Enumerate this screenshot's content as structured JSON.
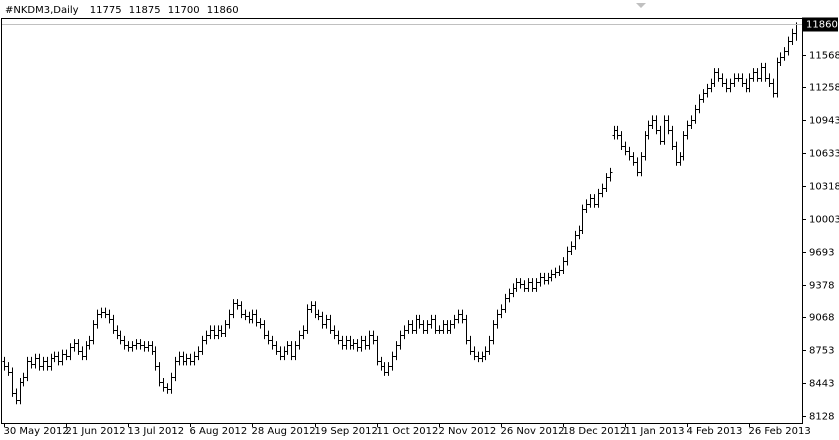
{
  "chart_data": {
    "type": "ohlc",
    "title": "#NKDM3,Daily",
    "color": "#000000",
    "categories": [
      "30 May 2012",
      null,
      null,
      null,
      null,
      null,
      null,
      null,
      null,
      null,
      null,
      null,
      null,
      null,
      null,
      null,
      "21 Jun 2012",
      null,
      null,
      null,
      null,
      null,
      null,
      null,
      null,
      null,
      null,
      null,
      null,
      null,
      null,
      null,
      "13 Jul 2012",
      null,
      null,
      null,
      null,
      null,
      null,
      null,
      null,
      null,
      null,
      null,
      null,
      null,
      null,
      null,
      "6 Aug 2012",
      null,
      null,
      null,
      null,
      null,
      null,
      null,
      null,
      null,
      null,
      null,
      null,
      null,
      null,
      null,
      "28 Aug 2012",
      null,
      null,
      null,
      null,
      null,
      null,
      null,
      null,
      null,
      null,
      null,
      null,
      null,
      null,
      null,
      "19 Sep 2012",
      null,
      null,
      null,
      null,
      null,
      null,
      null,
      null,
      null,
      null,
      null,
      null,
      null,
      null,
      null,
      "11 Oct 2012",
      null,
      null,
      null,
      null,
      null,
      null,
      null,
      null,
      null,
      null,
      null,
      null,
      null,
      null,
      null,
      "2 Nov 2012",
      null,
      null,
      null,
      null,
      null,
      null,
      null,
      null,
      null,
      null,
      null,
      null,
      null,
      null,
      null,
      "26 Nov 2012",
      null,
      null,
      null,
      null,
      null,
      null,
      null,
      null,
      null,
      null,
      null,
      null,
      null,
      null,
      null,
      "18 Dec 2012",
      null,
      null,
      null,
      null,
      null,
      null,
      null,
      null,
      null,
      null,
      null,
      null,
      null,
      null,
      null,
      "11 Jan 2013",
      null,
      null,
      null,
      null,
      null,
      null,
      null,
      null,
      null,
      null,
      null,
      null,
      null,
      null,
      null,
      "4 Feb 2013",
      null,
      null,
      null,
      null,
      null,
      null,
      null,
      null,
      null,
      null,
      null,
      null,
      null,
      null,
      null,
      "26 Feb 2013",
      null,
      null,
      null,
      null,
      null,
      null,
      null,
      null,
      null,
      null,
      null,
      null
    ],
    "open": [
      8650,
      8600,
      8550,
      8350,
      8280,
      8450,
      8500,
      8650,
      8620,
      8680,
      8600,
      8650,
      8600,
      8680,
      8700,
      8650,
      8720,
      8700,
      8780,
      8820,
      8750,
      8700,
      8800,
      8850,
      9000,
      9100,
      9120,
      9100,
      9050,
      8950,
      8900,
      8850,
      8800,
      8780,
      8800,
      8820,
      8800,
      8780,
      8800,
      8750,
      8600,
      8450,
      8400,
      8380,
      8500,
      8650,
      8700,
      8650,
      8680,
      8650,
      8700,
      8750,
      8850,
      8900,
      8950,
      8900,
      8950,
      8920,
      9000,
      9100,
      9200,
      9180,
      9100,
      9080,
      9050,
      9100,
      9020,
      9000,
      8900,
      8850,
      8800,
      8750,
      8700,
      8750,
      8800,
      8700,
      8800,
      8900,
      8950,
      9150,
      9180,
      9100,
      9080,
      9000,
      9050,
      8950,
      8900,
      8850,
      8800,
      8850,
      8800,
      8820,
      8780,
      8850,
      8800,
      8900,
      8850,
      8650,
      8600,
      8550,
      8600,
      8700,
      8800,
      8900,
      8950,
      9000,
      8950,
      9050,
      9000,
      8950,
      9000,
      9050,
      8950,
      8950,
      9000,
      8950,
      9000,
      9050,
      9100,
      9050,
      8850,
      8750,
      8700,
      8680,
      8700,
      8750,
      8850,
      9000,
      9100,
      9150,
      9250,
      9300,
      9350,
      9400,
      9380,
      9350,
      9400,
      9350,
      9400,
      9450,
      9420,
      9450,
      9480,
      9500,
      9520,
      9600,
      9700,
      9750,
      9850,
      9900,
      10100,
      10150,
      10200,
      10150,
      10250,
      10300,
      10400,
      10800,
      10850,
      10800,
      10700,
      10650,
      10600,
      10550,
      10450,
      10600,
      10800,
      10900,
      10950,
      10850,
      10750,
      10950,
      10850,
      10700,
      10550,
      10600,
      10800,
      10900,
      10950,
      11050,
      11150,
      11200,
      11250,
      11300,
      11400,
      11350,
      11300,
      11250,
      11300,
      11350,
      11350,
      11300,
      11250,
      11350,
      11400,
      11350,
      11450,
      11350,
      11300,
      11200,
      11500,
      11550,
      11600,
      11700,
      11775
    ],
    "high": [
      8690,
      8640,
      8590,
      8390,
      8490,
      8540,
      8690,
      8690,
      8720,
      8720,
      8690,
      8690,
      8720,
      8740,
      8740,
      8760,
      8760,
      8820,
      8860,
      8860,
      8790,
      8840,
      8890,
      9040,
      9140,
      9160,
      9160,
      9140,
      9090,
      8990,
      8940,
      8890,
      8840,
      8840,
      8860,
      8860,
      8840,
      8840,
      8840,
      8790,
      8640,
      8490,
      8440,
      8540,
      8690,
      8740,
      8740,
      8720,
      8720,
      8740,
      8790,
      8890,
      8940,
      8990,
      8990,
      8990,
      8990,
      9040,
      9140,
      9240,
      9240,
      9220,
      9140,
      9120,
      9140,
      9140,
      9060,
      9040,
      8940,
      8890,
      8840,
      8790,
      8790,
      8840,
      8840,
      8840,
      8940,
      8990,
      9190,
      9220,
      9220,
      9140,
      9120,
      9090,
      9090,
      8990,
      8940,
      8890,
      8890,
      8890,
      8860,
      8860,
      8890,
      8890,
      8940,
      8940,
      8890,
      8690,
      8640,
      8640,
      8740,
      8840,
      8940,
      8990,
      9040,
      9040,
      9090,
      9090,
      9040,
      9040,
      9090,
      9090,
      8990,
      9040,
      9040,
      9040,
      9090,
      9140,
      9140,
      9090,
      8890,
      8790,
      8740,
      8740,
      8790,
      8890,
      9040,
      9140,
      9190,
      9290,
      9340,
      9390,
      9440,
      9440,
      9420,
      9440,
      9440,
      9440,
      9490,
      9490,
      9490,
      9520,
      9540,
      9560,
      9640,
      9740,
      9790,
      9890,
      9940,
      10140,
      10190,
      10240,
      10240,
      10290,
      10340,
      10440,
      10490,
      10890,
      10890,
      10840,
      10740,
      10690,
      10640,
      10590,
      10640,
      10840,
      10940,
      10990,
      10990,
      10890,
      10990,
      10990,
      10890,
      10740,
      10640,
      10840,
      10940,
      10990,
      11090,
      11190,
      11240,
      11290,
      11340,
      11440,
      11440,
      11390,
      11340,
      11340,
      11390,
      11390,
      11390,
      11340,
      11390,
      11440,
      11440,
      11490,
      11490,
      11390,
      11340,
      11540,
      11590,
      11640,
      11740,
      11815,
      11875
    ],
    "low": [
      8560,
      8510,
      8310,
      8240,
      8240,
      8410,
      8460,
      8580,
      8580,
      8560,
      8560,
      8560,
      8560,
      8640,
      8610,
      8610,
      8660,
      8660,
      8740,
      8710,
      8660,
      8660,
      8760,
      8810,
      8960,
      9060,
      9060,
      9010,
      8910,
      8860,
      8810,
      8760,
      8740,
      8740,
      8760,
      8760,
      8740,
      8740,
      8710,
      8560,
      8410,
      8360,
      8340,
      8340,
      8460,
      8610,
      8610,
      8610,
      8610,
      8610,
      8660,
      8710,
      8810,
      8860,
      8860,
      8860,
      8880,
      8880,
      8960,
      9060,
      9140,
      9060,
      9040,
      9010,
      9010,
      8980,
      8960,
      8860,
      8810,
      8760,
      8710,
      8660,
      8660,
      8710,
      8660,
      8660,
      8760,
      8860,
      8910,
      9110,
      9060,
      9040,
      8960,
      8960,
      8910,
      8860,
      8810,
      8760,
      8760,
      8760,
      8760,
      8740,
      8740,
      8760,
      8760,
      8810,
      8610,
      8560,
      8510,
      8510,
      8560,
      8660,
      8760,
      8860,
      8910,
      8910,
      8910,
      8960,
      8910,
      8910,
      8960,
      8910,
      8910,
      8910,
      8910,
      8910,
      8960,
      9010,
      9010,
      8810,
      8710,
      8660,
      8640,
      8640,
      8660,
      8710,
      8810,
      8960,
      9060,
      9110,
      9210,
      9260,
      9310,
      9340,
      9310,
      9310,
      9310,
      9310,
      9360,
      9380,
      9380,
      9410,
      9440,
      9460,
      9480,
      9560,
      9660,
      9710,
      9810,
      9860,
      10060,
      10110,
      10110,
      10110,
      10210,
      10260,
      10360,
      10760,
      10760,
      10660,
      10610,
      10560,
      10510,
      10410,
      10410,
      10560,
      10760,
      10860,
      10810,
      10710,
      10710,
      10810,
      10660,
      10510,
      10510,
      10560,
      10760,
      10860,
      10910,
      11010,
      11110,
      11160,
      11210,
      11260,
      11310,
      11260,
      11210,
      11210,
      11260,
      11310,
      11260,
      11210,
      11210,
      11310,
      11310,
      11310,
      11310,
      11260,
      11160,
      11160,
      11460,
      11510,
      11560,
      11660,
      11700
    ],
    "close": [
      8600,
      8550,
      8350,
      8280,
      8450,
      8500,
      8650,
      8620,
      8680,
      8600,
      8650,
      8600,
      8680,
      8700,
      8650,
      8720,
      8700,
      8780,
      8820,
      8750,
      8700,
      8800,
      8850,
      9000,
      9100,
      9120,
      9100,
      9050,
      8950,
      8900,
      8850,
      8800,
      8780,
      8800,
      8820,
      8800,
      8780,
      8800,
      8750,
      8600,
      8450,
      8400,
      8380,
      8500,
      8650,
      8700,
      8650,
      8680,
      8650,
      8700,
      8750,
      8850,
      8900,
      8950,
      8900,
      8950,
      8920,
      9000,
      9100,
      9200,
      9180,
      9100,
      9080,
      9050,
      9100,
      9020,
      9000,
      8900,
      8850,
      8800,
      8750,
      8700,
      8750,
      8800,
      8700,
      8800,
      8900,
      8950,
      9150,
      9180,
      9100,
      9080,
      9000,
      9050,
      8950,
      8900,
      8850,
      8800,
      8850,
      8800,
      8820,
      8780,
      8850,
      8800,
      8900,
      8850,
      8650,
      8600,
      8550,
      8600,
      8700,
      8800,
      8900,
      8950,
      9000,
      8950,
      9050,
      9000,
      8950,
      9000,
      9050,
      8950,
      8950,
      9000,
      8950,
      9000,
      9050,
      9100,
      9050,
      8850,
      8750,
      8700,
      8680,
      8700,
      8750,
      8850,
      9000,
      9100,
      9150,
      9250,
      9300,
      9350,
      9400,
      9380,
      9350,
      9400,
      9350,
      9400,
      9450,
      9420,
      9450,
      9480,
      9500,
      9520,
      9600,
      9700,
      9750,
      9850,
      9900,
      10100,
      10150,
      10200,
      10150,
      10250,
      10300,
      10400,
      10450,
      10850,
      10800,
      10700,
      10650,
      10600,
      10550,
      10450,
      10600,
      10800,
      10900,
      10950,
      10850,
      10750,
      10950,
      10850,
      10700,
      10550,
      10600,
      10800,
      10900,
      10950,
      11050,
      11150,
      11200,
      11250,
      11300,
      11400,
      11350,
      11300,
      11250,
      11300,
      11350,
      11350,
      11300,
      11250,
      11350,
      11400,
      11350,
      11450,
      11350,
      11300,
      11200,
      11500,
      11550,
      11600,
      11700,
      11775,
      11860
    ],
    "ylim": [
      8061,
      11917
    ],
    "yticks": [
      8128,
      8443,
      8753,
      9068,
      9378,
      9693,
      10003,
      10318,
      10633,
      10943,
      11258,
      11568
    ]
  }
}
